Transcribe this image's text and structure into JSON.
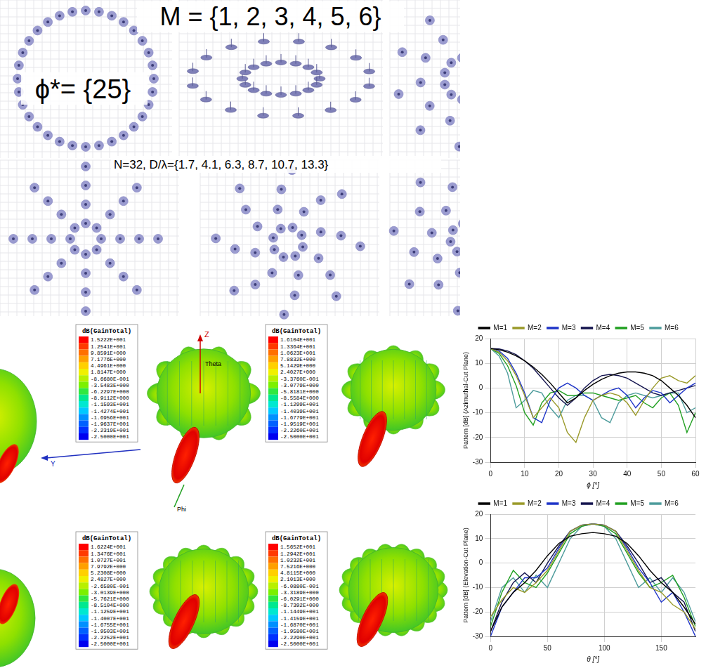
{
  "header": {
    "title": "M = {1, 2, 3, 4, 5, 6}",
    "phi_label": "ϕ*= {25}",
    "caption": "N=32,   D/λ={1.7, 4.1, 6.3, 8.7, 10.7, 13.3}"
  },
  "array_layouts": {
    "M": [
      1,
      2,
      3,
      4,
      5,
      6
    ],
    "N": 32
  },
  "axis_labels_3d": [
    "Z",
    "Theta",
    "Phi",
    "Y"
  ],
  "pattern_colorbars": [
    {
      "title": "dB(GainTotal)",
      "labels": [
        "1.5222E+001",
        "1.2541E+001",
        "9.8591E+000",
        "7.1776E+000",
        "4.4961E+000",
        "1.8147E+000",
        "-8.6680E-001",
        "-3.5483E+000",
        "-6.2297E+000",
        "-8.9112E+000",
        "-1.1593E+001",
        "-1.4274E+001",
        "-1.6956E+001",
        "-1.9637E+001",
        "-2.2319E+001",
        "-2.5000E+001"
      ]
    },
    {
      "title": "dB(GainTotal)",
      "labels": [
        "1.6104E+001",
        "1.3364E+001",
        "1.0623E+001",
        "7.8832E+000",
        "5.1429E+000",
        "2.4027E+000",
        "-3.3760E-001",
        "-3.0779E+000",
        "-5.8181E+000",
        "-8.5584E+000",
        "-1.1299E+001",
        "-1.4039E+001",
        "-1.6779E+001",
        "-1.9519E+001",
        "-2.2260E+001",
        "-2.5000E+001"
      ]
    },
    {
      "title": "dB(GainTotal)",
      "labels": [
        "1.6224E+001",
        "1.3476E+001",
        "1.0727E+001",
        "7.9792E+000",
        "5.2308E+000",
        "2.4827E+000",
        "-2.6580E-001",
        "-3.0139E+000",
        "-5.7621E+000",
        "-8.5104E+000",
        "-1.1259E+001",
        "-1.4007E+001",
        "-1.6755E+001",
        "-1.9503E+001",
        "-2.2252E+001",
        "-2.5000E+001"
      ]
    },
    {
      "title": "dB(GainTotal)",
      "labels": [
        "1.5652E+001",
        "1.2942E+001",
        "1.0232E+001",
        "7.5216E+000",
        "4.8115E+000",
        "2.1013E+000",
        "-6.0880E-001",
        "-3.3189E+000",
        "-6.0291E+000",
        "-8.7392E+000",
        "-1.1449E+001",
        "-1.4159E+001",
        "-1.6870E+001",
        "-1.9580E+001",
        "-2.2290E+001",
        "-2.5000E+001"
      ]
    }
  ],
  "chart_data": [
    {
      "type": "line",
      "x_label": "ϕ [°]",
      "y_label": "Pattern [dB] (Azimuthal-Cut Plane)",
      "xlim": [
        0,
        60
      ],
      "xticks": [
        0,
        10,
        20,
        30,
        40,
        50,
        60
      ],
      "ylim": [
        -30,
        20
      ],
      "yticks": [
        -30,
        -20,
        -10,
        0,
        10,
        20
      ],
      "grid": true,
      "legend": "top",
      "x": [
        0,
        2.5,
        5,
        7.5,
        10,
        12.5,
        15,
        17.5,
        20,
        22.5,
        25,
        27.5,
        30,
        32.5,
        35,
        37.5,
        40,
        42.5,
        45,
        47.5,
        50,
        52.5,
        55,
        57.5,
        60
      ],
      "series": [
        {
          "name": "M=1",
          "color": "#000000",
          "values": [
            16,
            15.5,
            14.5,
            13,
            11,
            8.5,
            5.5,
            2,
            -2,
            -6,
            -4,
            -1,
            1.5,
            3.5,
            5,
            6,
            6.5,
            6.5,
            6,
            5,
            3,
            0,
            -3,
            -7,
            -12
          ]
        },
        {
          "name": "M=2",
          "color": "#9a9a2a",
          "values": [
            16,
            14.5,
            11,
            5,
            -3,
            -12,
            -8,
            -4,
            -8,
            -18,
            -22,
            -12,
            -5,
            -3,
            -2,
            -3,
            -6,
            -11,
            -5,
            0,
            4,
            5,
            3,
            2,
            5
          ]
        },
        {
          "name": "M=3",
          "color": "#1f35c8",
          "values": [
            16,
            15,
            12,
            6,
            -2,
            -12,
            -14,
            -5,
            0,
            2,
            0,
            -3,
            -5,
            -3,
            -1,
            0,
            -3,
            -8,
            -4,
            -1,
            -2,
            -6,
            -3,
            0,
            2
          ]
        },
        {
          "name": "M=4",
          "color": "#15154f",
          "values": [
            16,
            15.8,
            15,
            13.5,
            11,
            8,
            4,
            0,
            -4,
            -7,
            -4,
            0,
            3,
            5,
            5.5,
            5,
            4,
            2,
            0,
            -2,
            -3,
            -2,
            -1,
            0,
            1
          ]
        },
        {
          "name": "M=5",
          "color": "#22a022",
          "values": [
            16,
            14,
            9,
            1,
            -10,
            -15,
            -6,
            -2,
            -1,
            -3,
            -3,
            -2,
            -2,
            -3,
            -4,
            -5,
            -4,
            -3,
            -6,
            -8,
            -4,
            -2,
            -7,
            -18,
            -10
          ]
        },
        {
          "name": "M=6",
          "color": "#4e9c9c",
          "values": [
            16,
            13,
            6,
            -8,
            -5,
            -1,
            -2,
            -8,
            -12,
            -5,
            -3,
            -3,
            -5,
            -12,
            -14,
            -6,
            -3,
            -2,
            -3,
            -4,
            -3,
            -2,
            -2,
            -10,
            -8
          ]
        }
      ]
    },
    {
      "type": "line",
      "x_label": "θ [°]",
      "y_label": "Pattern [dB] (Elevation-Cut Plane)",
      "xlim": [
        0,
        180
      ],
      "xticks": [
        0,
        50,
        100,
        150
      ],
      "ylim": [
        -30,
        20
      ],
      "yticks": [
        -30,
        -20,
        -10,
        0,
        10,
        20
      ],
      "grid": true,
      "legend": "top",
      "x": [
        0,
        10,
        20,
        30,
        40,
        50,
        60,
        70,
        80,
        90,
        100,
        110,
        120,
        130,
        140,
        150,
        160,
        170,
        180
      ],
      "series": [
        {
          "name": "M=1",
          "color": "#000000",
          "values": [
            -28,
            -18,
            -12,
            -8,
            -3,
            3,
            8,
            11,
            12,
            12.5,
            12,
            11,
            8,
            3,
            -3,
            -8,
            -12,
            -18,
            -25
          ]
        },
        {
          "name": "M=2",
          "color": "#9a9a2a",
          "values": [
            -22,
            -15,
            -10,
            -12,
            -8,
            -3,
            5,
            13,
            15.5,
            16,
            15.5,
            13,
            5,
            -3,
            -10,
            -12,
            -17,
            -20,
            -27
          ]
        },
        {
          "name": "M=3",
          "color": "#1f35c8",
          "values": [
            -30,
            -18,
            -12,
            -6,
            -6,
            -2,
            6,
            13,
            15.5,
            16,
            15.5,
            13,
            6,
            -2,
            -8,
            -16,
            -12,
            -20,
            -30
          ]
        },
        {
          "name": "M=4",
          "color": "#15154f",
          "values": [
            -28,
            -16,
            -8,
            -4,
            -8,
            0,
            7,
            13,
            15.5,
            16,
            15.5,
            13,
            7,
            0,
            -8,
            -6,
            -12,
            -16,
            -28
          ]
        },
        {
          "name": "M=5",
          "color": "#22a022",
          "values": [
            -26,
            -12,
            -3,
            -8,
            -10,
            -4,
            4,
            12,
            15,
            16,
            15,
            12,
            4,
            -4,
            -10,
            -8,
            -5,
            -14,
            -26
          ]
        },
        {
          "name": "M=6",
          "color": "#4e9c9c",
          "values": [
            -24,
            -10,
            -6,
            -12,
            -5,
            -10,
            0,
            10,
            15,
            16,
            15,
            10,
            0,
            -10,
            -6,
            -12,
            -6,
            -12,
            -24
          ]
        }
      ]
    }
  ]
}
